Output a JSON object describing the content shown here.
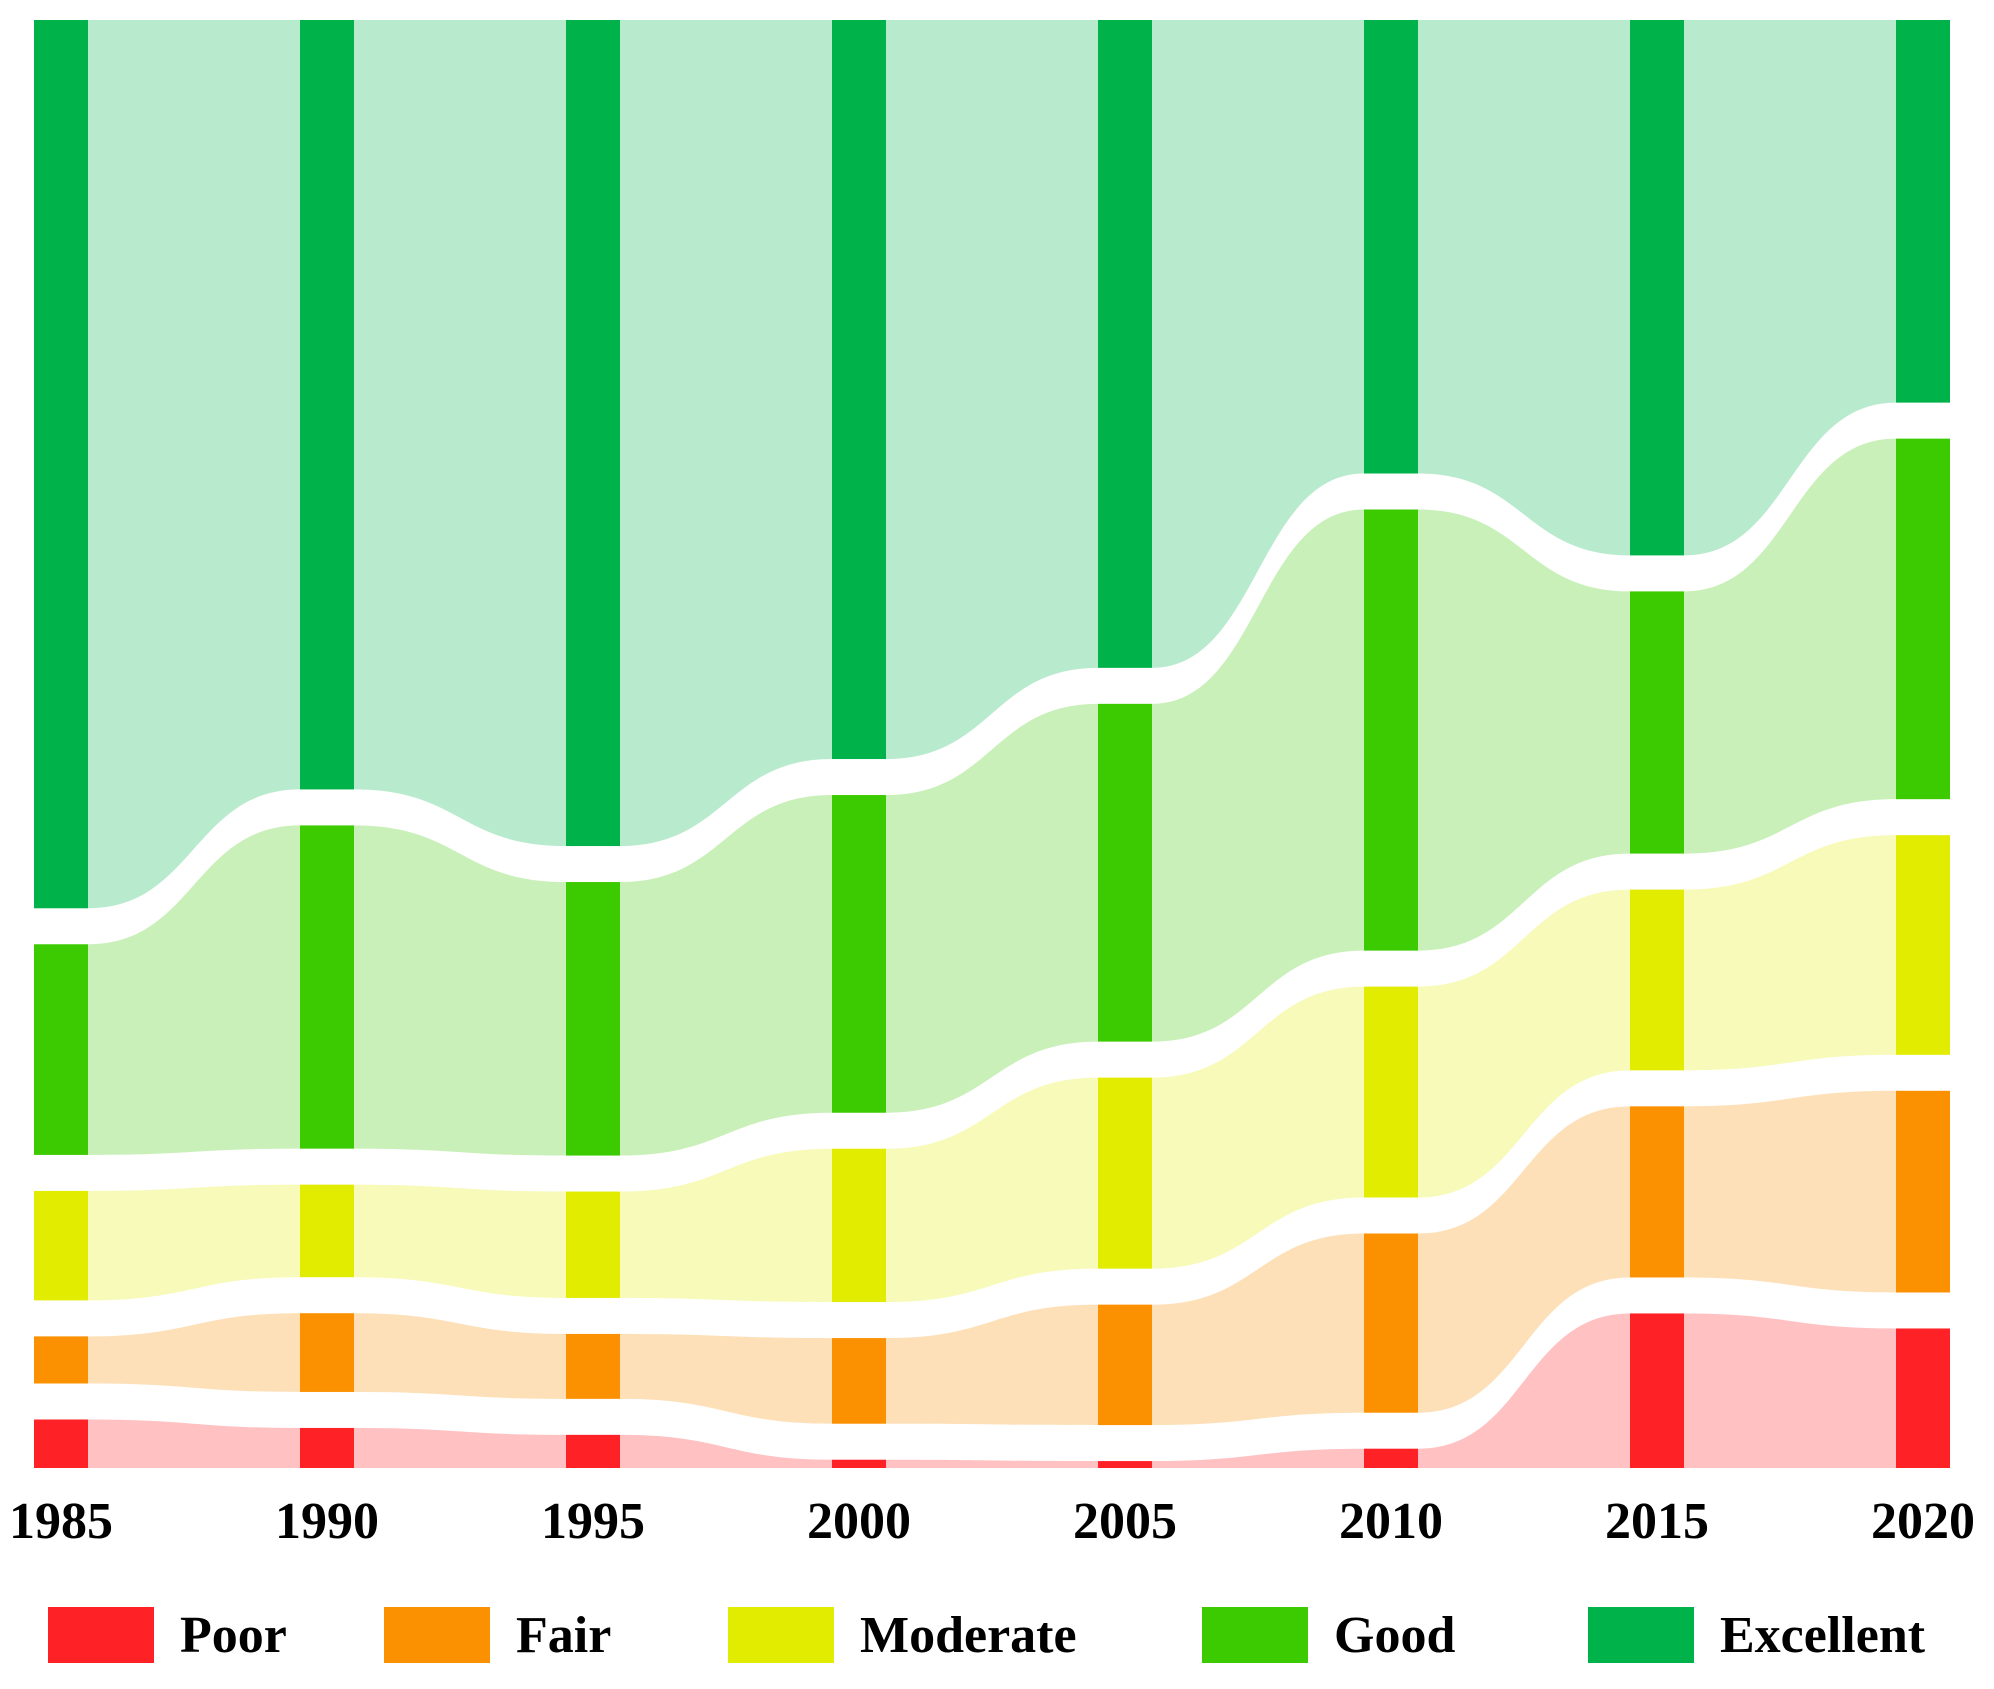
{
  "chart_data": {
    "type": "sankey",
    "title": "",
    "years": [
      "1985",
      "1990",
      "1995",
      "2000",
      "2005",
      "2010",
      "2015",
      "2020"
    ],
    "categories": [
      "Poor",
      "Fair",
      "Moderate",
      "Good",
      "Excellent"
    ],
    "colors": {
      "Poor": "#fe2125",
      "Fair": "#fb9000",
      "Moderate": "#e2ec00",
      "Good": "#3cca00",
      "Excellent": "#00b24a"
    },
    "values_percent": {
      "1985": {
        "Poor": 3.5,
        "Fair": 3.4,
        "Moderate": 7.9,
        "Good": 15.2,
        "Excellent": 64.1
      },
      "1990": {
        "Poor": 2.9,
        "Fair": 5.7,
        "Moderate": 6.7,
        "Good": 23.4,
        "Excellent": 55.7
      },
      "1995": {
        "Poor": 2.4,
        "Fair": 4.7,
        "Moderate": 7.7,
        "Good": 19.8,
        "Excellent": 59.8
      },
      "2000": {
        "Poor": 0.6,
        "Fair": 6.2,
        "Moderate": 11.1,
        "Good": 23.0,
        "Excellent": 53.5
      },
      "2005": {
        "Poor": 0.5,
        "Fair": 8.7,
        "Moderate": 13.8,
        "Good": 24.4,
        "Excellent": 46.8
      },
      "2010": {
        "Poor": 1.4,
        "Fair": 13.0,
        "Moderate": 15.3,
        "Good": 32.0,
        "Excellent": 32.9
      },
      "2015": {
        "Poor": 11.2,
        "Fair": 12.4,
        "Moderate": 13.1,
        "Good": 19.0,
        "Excellent": 38.8
      },
      "2020": {
        "Poor": 10.1,
        "Fair": 14.6,
        "Moderate": 15.9,
        "Good": 26.1,
        "Excellent": 27.7
      }
    },
    "legend": {
      "position": "bottom",
      "entries": [
        "Poor",
        "Fair",
        "Moderate",
        "Good",
        "Excellent"
      ]
    },
    "node_order": "bottom-to-top: Poor, Fair, Moderate, Good, Excellent"
  }
}
